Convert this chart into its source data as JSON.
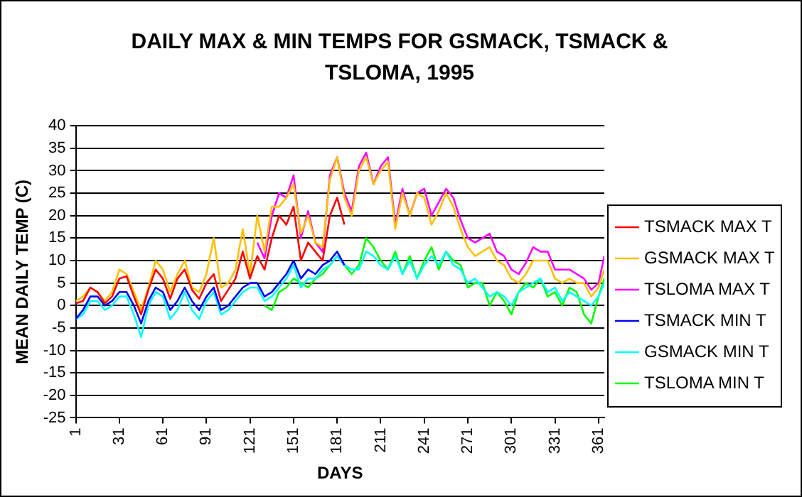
{
  "chart_data": {
    "type": "line",
    "title": "DAILY MAX & MIN TEMPS FOR GSMACK, TSMACK & TSLOMA, 1995",
    "xlabel": "DAYS",
    "ylabel": "MEAN DAILY TEMP (C)",
    "x": [
      1,
      6,
      11,
      16,
      21,
      26,
      31,
      36,
      41,
      46,
      51,
      56,
      61,
      66,
      71,
      76,
      81,
      86,
      91,
      96,
      101,
      106,
      111,
      116,
      121,
      126,
      131,
      136,
      141,
      146,
      151,
      156,
      161,
      166,
      171,
      176,
      181,
      186,
      191,
      196,
      201,
      206,
      211,
      216,
      221,
      226,
      231,
      236,
      241,
      246,
      251,
      256,
      261,
      266,
      271,
      276,
      281,
      286,
      291,
      296,
      301,
      306,
      311,
      316,
      321,
      326,
      331,
      336,
      341,
      346,
      351,
      356,
      361,
      365
    ],
    "xlim": [
      1,
      365
    ],
    "xticks": [
      1,
      31,
      61,
      91,
      121,
      151,
      181,
      211,
      241,
      271,
      301,
      331,
      361
    ],
    "ylim": [
      -25,
      40
    ],
    "yticks": [
      -25,
      -20,
      -15,
      -10,
      -5,
      0,
      5,
      10,
      15,
      20,
      25,
      30,
      35,
      40
    ],
    "grid": "y",
    "legend": "right",
    "marker": "none",
    "line_style": "solid",
    "series": [
      {
        "name": "TSMACK MAX T",
        "color": "#ff0000",
        "values": [
          0.5,
          1,
          4,
          3,
          0.5,
          2,
          6,
          6.5,
          2,
          -2,
          3.5,
          8,
          6,
          1.5,
          6,
          8,
          3.5,
          1.5,
          5,
          7,
          1,
          3.5,
          6,
          12,
          6,
          11,
          8,
          15,
          20,
          18,
          22,
          10,
          14,
          12,
          10,
          20,
          24,
          18,
          null,
          null,
          null,
          null,
          null,
          null,
          null,
          null,
          null,
          null,
          null,
          null,
          null,
          null,
          null,
          null,
          null,
          null,
          null,
          null,
          null,
          null,
          null,
          null,
          null,
          null,
          null,
          null,
          null,
          null,
          null,
          null,
          null,
          null,
          null,
          null
        ]
      },
      {
        "name": "GSMACK MAX T",
        "color": "#ffc000",
        "values": [
          1,
          2,
          4,
          3,
          1,
          3,
          8,
          7,
          3,
          -1,
          4,
          10,
          8,
          3,
          7,
          10,
          4,
          3,
          7,
          15,
          4,
          5,
          8,
          17,
          7,
          20,
          12,
          22,
          22,
          24,
          27,
          16,
          20,
          14,
          13,
          28,
          33,
          24,
          20,
          30,
          33,
          27,
          30,
          32,
          17,
          25,
          20,
          25,
          24,
          18,
          21,
          25,
          22,
          17,
          13,
          11,
          12,
          13,
          10,
          9,
          6,
          5,
          7,
          10,
          10,
          10,
          6,
          5,
          6,
          5,
          5,
          2,
          4,
          8
        ]
      },
      {
        "name": "TSLOMA MAX T",
        "color": "#ff00ff",
        "values": [
          null,
          null,
          null,
          null,
          null,
          null,
          null,
          null,
          null,
          null,
          null,
          null,
          null,
          null,
          null,
          null,
          null,
          null,
          null,
          null,
          null,
          null,
          null,
          null,
          null,
          14,
          10.5,
          20,
          25,
          24,
          29,
          15,
          21,
          14,
          12,
          29,
          33,
          25,
          21,
          31,
          34,
          27,
          31,
          33,
          18,
          26,
          20,
          25,
          26,
          20,
          23,
          26,
          24,
          19,
          15,
          14,
          15,
          16,
          12,
          11,
          8,
          7,
          9.5,
          13,
          12,
          12,
          8,
          8,
          8,
          7,
          6,
          3.5,
          5,
          11
        ]
      },
      {
        "name": "TSMACK MIN T",
        "color": "#0000ff",
        "values": [
          -3,
          -1,
          2,
          2,
          0,
          1,
          3,
          3,
          0,
          -4,
          1,
          4,
          3,
          -1,
          1,
          4,
          1,
          -1,
          2,
          4,
          -1,
          0,
          2,
          4,
          5,
          5,
          2,
          3,
          5,
          7,
          10,
          6,
          8,
          7,
          9,
          10,
          12,
          9,
          null,
          null,
          null,
          null,
          null,
          null,
          null,
          null,
          null,
          null,
          null,
          null,
          null,
          null,
          null,
          null,
          null,
          null,
          null,
          null,
          null,
          null,
          null,
          null,
          null,
          null,
          null,
          null,
          null,
          null,
          null,
          null,
          null,
          null,
          null,
          null
        ]
      },
      {
        "name": "GSMACK MIN T",
        "color": "#00ffff",
        "values": [
          -3,
          -2,
          1,
          1,
          -1,
          0,
          2,
          2,
          -2,
          -7,
          0,
          3,
          2,
          -3,
          -1,
          3,
          -1,
          -3,
          1,
          3,
          -2,
          -1,
          1,
          3,
          4,
          4,
          1,
          2,
          4,
          6,
          9,
          4,
          6,
          6,
          8,
          9,
          11,
          9,
          8,
          8,
          12,
          11,
          9,
          8,
          11,
          7,
          10,
          6,
          9,
          11,
          9,
          12,
          9,
          8,
          5,
          6,
          4,
          2,
          3,
          2,
          0,
          3,
          4,
          5,
          6,
          3,
          4,
          1,
          3,
          2,
          1,
          0,
          2,
          5
        ]
      },
      {
        "name": "TSLOMA MIN T",
        "color": "#00ff00",
        "values": [
          null,
          null,
          null,
          null,
          null,
          null,
          null,
          null,
          null,
          null,
          null,
          null,
          null,
          null,
          null,
          null,
          null,
          null,
          null,
          null,
          null,
          null,
          null,
          null,
          null,
          null,
          0,
          -1,
          3,
          4,
          6,
          5,
          4,
          6,
          7,
          9,
          11,
          9,
          7,
          9,
          15,
          13,
          10,
          8,
          12,
          7,
          11,
          6,
          10,
          13,
          8,
          12,
          10,
          9,
          4,
          5,
          5,
          0,
          3,
          1,
          -2,
          3,
          5,
          4,
          6,
          2,
          3,
          0,
          4,
          3,
          -2,
          -4,
          2,
          6
        ]
      }
    ]
  }
}
